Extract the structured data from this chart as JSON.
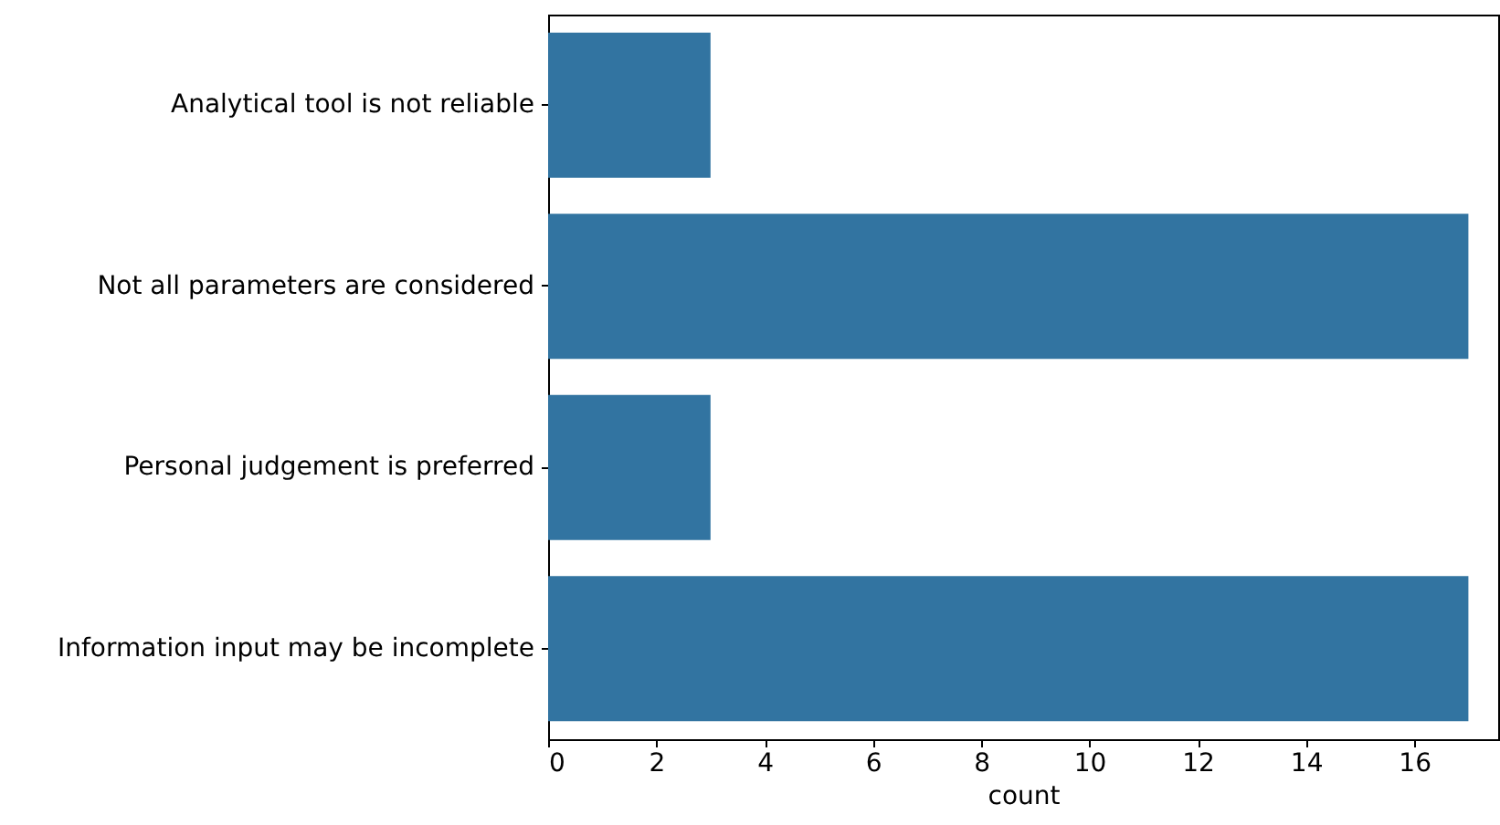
{
  "chart_data": {
    "type": "bar",
    "orientation": "horizontal",
    "xlabel": "count",
    "categories": [
      "Analytical tool is not reliable",
      "Not all parameters are considered",
      "Personal judgement is preferred",
      "Information input may be incomplete"
    ],
    "values": [
      3,
      17,
      3,
      17
    ],
    "color": "#3274a1",
    "xlim": [
      0,
      17.55
    ],
    "xticks": [
      0,
      2,
      4,
      6,
      8,
      10,
      12,
      14,
      16
    ],
    "grid": false
  }
}
